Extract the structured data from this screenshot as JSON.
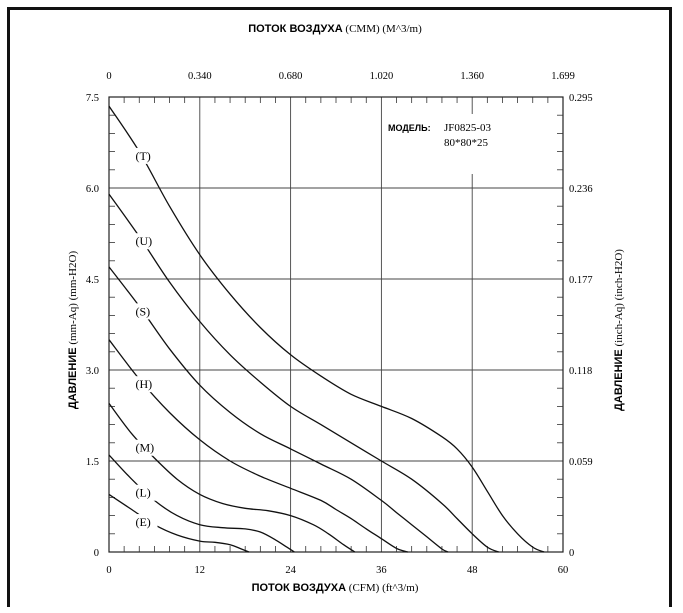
{
  "chart_data": {
    "type": "line",
    "title": "",
    "top_axis": {
      "label_bold": "ПОТОК ВОЗДУХА",
      "label_rest": " (CMM) (M^3/m)",
      "ticks": [
        "0",
        "0.340",
        "0.680",
        "1.020",
        "1.360",
        "1.699"
      ],
      "range": [
        0,
        1.699
      ]
    },
    "bottom_axis": {
      "label_bold": "ПОТОК ВОЗДУХА",
      "label_rest": " (CFM) (ft^3/m)",
      "ticks": [
        "0",
        "12",
        "24",
        "36",
        "48",
        "60"
      ],
      "range": [
        0,
        60
      ]
    },
    "left_axis": {
      "label_bold": "ДАВЛЕНИЕ",
      "label_rest": " (mm-Aq) (mm-H2O)",
      "ticks": [
        "0",
        "1.5",
        "3.0",
        "4.5",
        "6.0",
        "7.5"
      ],
      "range": [
        0,
        7.5
      ]
    },
    "right_axis": {
      "label_bold": "ДАВЛЕНИЕ",
      "label_rest": " (inch-Aq) (inch-H2O)",
      "ticks": [
        "0",
        "0.059",
        "0.118",
        "0.177",
        "0.236",
        "0.295"
      ],
      "range": [
        0,
        0.295
      ]
    },
    "grid": true,
    "model": {
      "label": "МОДЕЛЬ:",
      "name": "JF0825-03",
      "size": "80*80*25"
    },
    "series": [
      {
        "name": "(T)",
        "x": [
          0,
          4,
          8,
          12,
          16,
          20,
          24,
          28,
          32,
          36,
          40,
          44,
          46,
          48,
          50,
          52,
          54,
          56,
          57.5
        ],
        "y": [
          7.35,
          6.6,
          5.7,
          4.9,
          4.25,
          3.7,
          3.25,
          2.9,
          2.6,
          2.4,
          2.2,
          1.9,
          1.7,
          1.4,
          1.0,
          0.6,
          0.3,
          0.08,
          0
        ]
      },
      {
        "name": "(U)",
        "x": [
          0,
          4,
          8,
          12,
          16,
          20,
          24,
          28,
          32,
          36,
          40,
          44,
          46,
          48,
          50,
          51.5
        ],
        "y": [
          5.9,
          5.2,
          4.45,
          3.8,
          3.25,
          2.8,
          2.4,
          2.1,
          1.8,
          1.5,
          1.2,
          0.8,
          0.55,
          0.3,
          0.08,
          0
        ]
      },
      {
        "name": "(S)",
        "x": [
          0,
          4,
          8,
          12,
          16,
          20,
          24,
          28,
          32,
          36,
          38,
          40,
          42,
          44,
          44.8
        ],
        "y": [
          4.7,
          4.05,
          3.35,
          2.75,
          2.3,
          1.95,
          1.7,
          1.45,
          1.2,
          0.85,
          0.65,
          0.45,
          0.25,
          0.05,
          0
        ]
      },
      {
        "name": "(H)",
        "x": [
          0,
          4,
          8,
          12,
          16,
          20,
          24,
          28,
          30,
          32,
          34,
          36,
          38,
          39.5
        ],
        "y": [
          3.5,
          2.85,
          2.3,
          1.85,
          1.5,
          1.25,
          1.05,
          0.85,
          0.7,
          0.55,
          0.38,
          0.22,
          0.06,
          0
        ]
      },
      {
        "name": "(M)",
        "x": [
          0,
          3,
          6,
          9,
          12,
          15,
          18,
          21,
          24,
          27,
          29,
          31,
          32.5
        ],
        "y": [
          2.45,
          1.95,
          1.55,
          1.2,
          0.95,
          0.8,
          0.72,
          0.68,
          0.6,
          0.45,
          0.3,
          0.12,
          0
        ]
      },
      {
        "name": "(L)",
        "x": [
          0,
          3,
          6,
          9,
          12,
          15,
          18,
          20,
          22,
          23.5,
          24.5
        ],
        "y": [
          1.6,
          1.2,
          0.85,
          0.6,
          0.45,
          0.4,
          0.38,
          0.33,
          0.2,
          0.08,
          0
        ]
      },
      {
        "name": "(E)",
        "x": [
          0,
          3,
          6,
          9,
          12,
          14,
          16,
          17.5,
          18.5
        ],
        "y": [
          0.95,
          0.7,
          0.45,
          0.28,
          0.18,
          0.16,
          0.12,
          0.05,
          0
        ]
      }
    ]
  }
}
